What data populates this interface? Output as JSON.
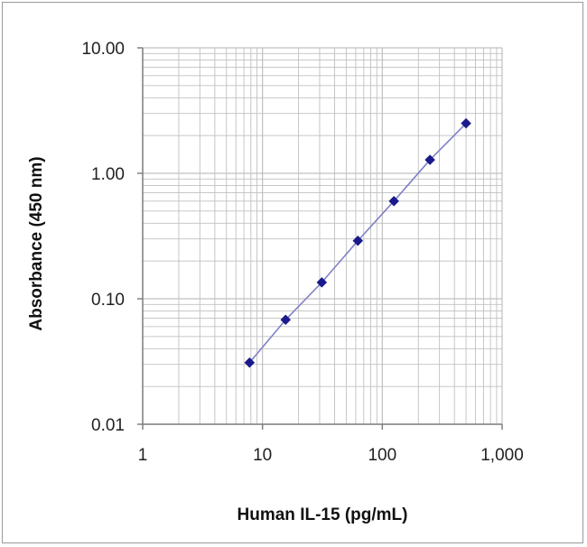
{
  "chart_data": {
    "type": "scatter",
    "title": "",
    "xlabel": "Human IL-15 (pg/mL)",
    "ylabel": "Absorbance (450 nm)",
    "xscale": "log",
    "yscale": "log",
    "xlim": [
      1,
      1000
    ],
    "ylim": [
      0.01,
      10
    ],
    "xticks": [
      1,
      10,
      100,
      1000
    ],
    "xtick_labels": [
      "1",
      "10",
      "100",
      "1,000"
    ],
    "yticks": [
      0.01,
      0.1,
      1,
      10
    ],
    "ytick_labels": [
      "0.01",
      "0.10",
      "1.00",
      "10.00"
    ],
    "grid": true,
    "legend": "none",
    "series": [
      {
        "x": [
          7.8,
          15.6,
          31.25,
          62.5,
          125,
          250,
          500
        ],
        "y": [
          0.031,
          0.068,
          0.135,
          0.29,
          0.6,
          1.28,
          2.5
        ],
        "connected": true
      }
    ],
    "colors": {
      "line": "#8080c8",
      "marker": "#1a1a8c",
      "grid": "#c0c0c0",
      "axis": "#808080"
    }
  }
}
